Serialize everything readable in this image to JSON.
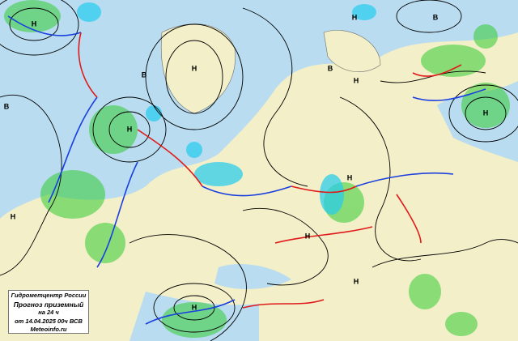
{
  "legend": {
    "line1": "Гидрометцентр России",
    "line2": "Прогноз  приземный",
    "line3": "на 24 ч",
    "line4": "от 14.04.2025 00ч ВСВ",
    "line5": "Meteoinfo.ru"
  },
  "colors": {
    "land": "#f3efc8",
    "sea": "#b9dcf0",
    "isobar": "#000000",
    "rain": "#33cc33",
    "snow": "#22ccee",
    "cold_front": "#1a3fe0",
    "warm_front": "#e01a1a"
  },
  "pressure_centers": [
    {
      "label": "Н"
    },
    {
      "label": "В"
    },
    {
      "label": "В"
    },
    {
      "label": "Н"
    },
    {
      "label": "Н"
    },
    {
      "label": "В"
    },
    {
      "label": "Н"
    },
    {
      "label": "Н"
    },
    {
      "label": "Н"
    },
    {
      "label": "Н"
    },
    {
      "label": "Н"
    },
    {
      "label": "Н"
    },
    {
      "label": "Н"
    },
    {
      "label": "Н"
    },
    {
      "label": "В"
    }
  ]
}
